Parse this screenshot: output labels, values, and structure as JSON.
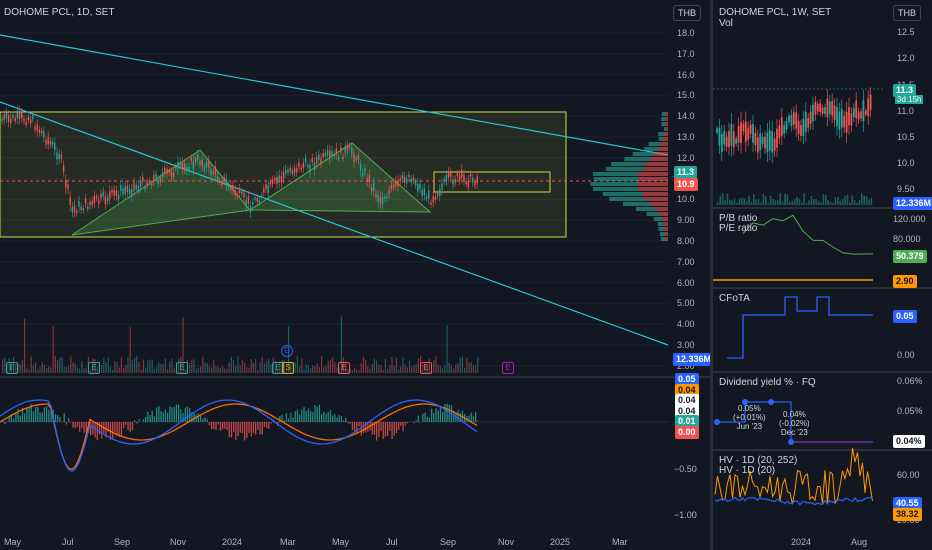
{
  "main": {
    "title": "DOHOME PCL, 1D, SET",
    "currency": "THB",
    "price_axis": [
      "18.0",
      "17.0",
      "16.0",
      "15.0",
      "14.0",
      "13.0",
      "12.0",
      "11.0",
      "10.0",
      "9.00",
      "8.00",
      "7.00",
      "6.00",
      "5.00",
      "4.00",
      "3.00",
      "2.00"
    ],
    "tags": {
      "last": "11.3",
      "close": "10.9",
      "volume": "12.336M"
    },
    "time_axis": [
      "May",
      "Jul",
      "Sep",
      "Nov",
      "2024",
      "Mar",
      "May",
      "Jul",
      "Sep",
      "Nov",
      "2025",
      "Mar"
    ],
    "events": [
      "E",
      "E",
      "E",
      "E",
      "D",
      "E",
      "E",
      "E",
      "E",
      "E"
    ],
    "osc_axis": [
      "−0.50",
      "−1.00"
    ],
    "osc_tags": [
      "0.05",
      "0.04",
      "0.04",
      "0.04",
      "0.01",
      "0.00"
    ],
    "colors": {
      "up": "#26a69a",
      "down": "#ef5350",
      "trend": "#26c6da",
      "box": "#cddc39",
      "pattern": "#4caf50",
      "macd": "#2962ff",
      "signal": "#ff6d00"
    }
  },
  "side": {
    "title": "DOHOME PCL, 1W, SET",
    "currency": "THB",
    "vol_label": "Vol",
    "price_axis": [
      "12.5",
      "12.0",
      "11.5",
      "11.0",
      "10.5",
      "10.0",
      "9.50"
    ],
    "price_tag": "11.3",
    "price_sub": "3d 15h",
    "vol_tag": "12.336M",
    "pb_label": "P/B ratio",
    "pe_label": "P/E ratio",
    "pb_axis": [
      "120.000",
      "80.000",
      "40.000"
    ],
    "pb_tag": "50.379",
    "pe_tag": "2.90",
    "cfota_label": "CFoTA",
    "cfota_tag": "0.05",
    "cfota_axis": "0.00",
    "div_label": "Dividend yield % · FQ",
    "div_axis": [
      "0.06%",
      "0.05%"
    ],
    "div_tag": "0.04%",
    "div_note1": [
      "0.05%",
      "(+0.01%)",
      "Jun '23"
    ],
    "div_note2": [
      "0.04%",
      "(-0.02%)",
      "Dec '23"
    ],
    "hv_label1": "HV · 1D (20, 252)",
    "hv_label2": "HV · 1D (20)",
    "hv_axis": [
      "60.00",
      "20.00"
    ],
    "hv_tag1": "40.55",
    "hv_tag2": "38.32",
    "time_axis": [
      "2024",
      "Aug"
    ]
  }
}
